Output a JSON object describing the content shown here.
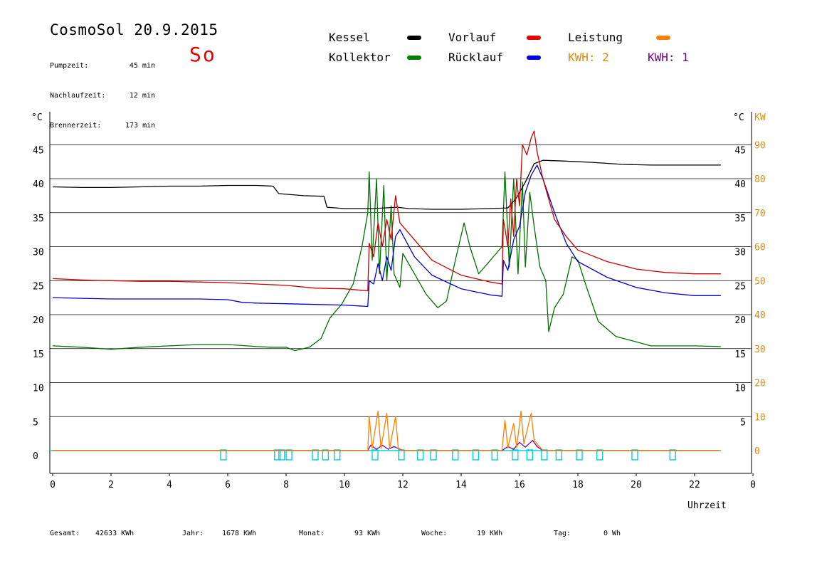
{
  "header": {
    "title": "CosmoSol 20.9.2015",
    "day": "So",
    "stats": [
      {
        "label": "Pumpzeit:",
        "value": "45 min"
      },
      {
        "label": "Nachlaufzeit:",
        "value": "12 min"
      },
      {
        "label": "Brennerzeit:",
        "value": "173 min"
      }
    ]
  },
  "legend": [
    {
      "label": "Kessel",
      "color": "#000000",
      "text_color": "#000000"
    },
    {
      "label": "Vorlauf",
      "color": "#e60000",
      "text_color": "#000000"
    },
    {
      "label": "Leistung",
      "color": "#ff8000",
      "text_color": "#000000"
    },
    {
      "label": "Kollektor",
      "color": "#008000",
      "text_color": "#000000"
    },
    {
      "label": "Rücklauf",
      "color": "#0000dd",
      "text_color": "#000000"
    },
    {
      "label": "KWH: 2",
      "color": "",
      "text_color": "#e68a00"
    },
    {
      "label": "KWH: 1",
      "color": "",
      "text_color": "#800080"
    }
  ],
  "footer": {
    "gesamt_label": "Gesamt:",
    "gesamt_value": "42633 KWh",
    "jahr_label": "Jahr:",
    "jahr_value": "1678 KWh",
    "monat_label": "Monat:",
    "monat_value": "93 KWh",
    "woche_label": "Woche:",
    "woche_value": "19 KWh",
    "tag_label": "Tag:",
    "tag_value": "0 Wh"
  },
  "chart_data": {
    "type": "line",
    "xlabel": "Uhrzeit",
    "ylabel_left": "°C",
    "ylabel_right": "°C",
    "ylabel_right2": "KW",
    "xlim": [
      0,
      24
    ],
    "ylim": [
      -3,
      50
    ],
    "x_ticks": [
      "0",
      "2",
      "4",
      "6",
      "8",
      "10",
      "12",
      "14",
      "16",
      "18",
      "20",
      "22",
      "0"
    ],
    "y_ticks_left": [
      "0",
      "5",
      "10",
      "15",
      "20",
      "25",
      "30",
      "35",
      "40",
      "45"
    ],
    "y_ticks_right": [
      "5",
      "10",
      "15",
      "20",
      "25",
      "30",
      "35",
      "40",
      "45"
    ],
    "y_ticks_kw": [
      "0",
      "10",
      "20",
      "30",
      "40",
      "50",
      "60",
      "70",
      "80",
      "90"
    ],
    "grid": true,
    "colors": {
      "kessel": "#000000",
      "vorlauf": "#cc0000",
      "ruecklauf": "#0000cc",
      "kollektor": "#007000",
      "leistung": "#ff8000",
      "kwh1": "#800080",
      "pump": "#00d0e0",
      "kw_axis": "#e68a00"
    },
    "series": [
      {
        "name": "Kessel",
        "key": "kessel",
        "points": [
          [
            0,
            38.8
          ],
          [
            1,
            38.7
          ],
          [
            2,
            38.7
          ],
          [
            3,
            38.8
          ],
          [
            4,
            38.9
          ],
          [
            5,
            38.9
          ],
          [
            6,
            39.0
          ],
          [
            7,
            39.0
          ],
          [
            7.55,
            38.9
          ],
          [
            7.75,
            37.8
          ],
          [
            8.6,
            37.5
          ],
          [
            9.3,
            37.4
          ],
          [
            9.4,
            35.8
          ],
          [
            10,
            35.6
          ],
          [
            11,
            35.6
          ],
          [
            11.8,
            35.8
          ],
          [
            12.2,
            35.6
          ],
          [
            13,
            35.5
          ],
          [
            14,
            35.5
          ],
          [
            15,
            35.6
          ],
          [
            15.6,
            35.7
          ],
          [
            15.9,
            37.2
          ],
          [
            16.2,
            39.5
          ],
          [
            16.5,
            42.2
          ],
          [
            16.8,
            42.7
          ],
          [
            17.5,
            42.6
          ],
          [
            18.5,
            42.4
          ],
          [
            19.5,
            42.1
          ],
          [
            20.5,
            42.0
          ],
          [
            21.5,
            42.0
          ],
          [
            22.9,
            42.0
          ]
        ]
      },
      {
        "name": "Vorlauf",
        "key": "vorlauf",
        "points": [
          [
            0,
            25.3
          ],
          [
            1,
            25.1
          ],
          [
            2,
            25.0
          ],
          [
            3,
            24.9
          ],
          [
            4,
            24.9
          ],
          [
            5,
            24.8
          ],
          [
            6,
            24.7
          ],
          [
            7,
            24.5
          ],
          [
            8,
            24.3
          ],
          [
            9,
            23.9
          ],
          [
            10,
            23.8
          ],
          [
            10.8,
            23.5
          ],
          [
            10.85,
            30.5
          ],
          [
            11.0,
            28.5
          ],
          [
            11.15,
            33.5
          ],
          [
            11.3,
            30.0
          ],
          [
            11.45,
            34.0
          ],
          [
            11.6,
            31.0
          ],
          [
            11.75,
            37.5
          ],
          [
            11.9,
            33.5
          ],
          [
            12.4,
            31.0
          ],
          [
            13,
            28.0
          ],
          [
            14,
            25.8
          ],
          [
            15,
            24.8
          ],
          [
            15.4,
            24.5
          ],
          [
            15.45,
            34.0
          ],
          [
            15.6,
            30.0
          ],
          [
            15.7,
            37.0
          ],
          [
            15.8,
            31.5
          ],
          [
            15.9,
            40.0
          ],
          [
            16.0,
            36.0
          ],
          [
            16.1,
            45.0
          ],
          [
            16.25,
            43.5
          ],
          [
            16.4,
            46.0
          ],
          [
            16.5,
            47.0
          ],
          [
            16.6,
            44.0
          ],
          [
            16.8,
            40.0
          ],
          [
            17.2,
            34.0
          ],
          [
            17.6,
            31.5
          ],
          [
            18,
            29.5
          ],
          [
            19,
            27.8
          ],
          [
            20,
            26.7
          ],
          [
            21,
            26.2
          ],
          [
            22,
            26.0
          ],
          [
            22.9,
            26.0
          ]
        ]
      },
      {
        "name": "Rücklauf",
        "key": "ruecklauf",
        "points": [
          [
            0,
            22.5
          ],
          [
            1,
            22.4
          ],
          [
            2,
            22.3
          ],
          [
            3,
            22.3
          ],
          [
            4,
            22.3
          ],
          [
            5,
            22.3
          ],
          [
            6,
            22.2
          ],
          [
            6.5,
            21.8
          ],
          [
            7,
            21.7
          ],
          [
            8,
            21.6
          ],
          [
            9,
            21.5
          ],
          [
            10,
            21.4
          ],
          [
            10.8,
            21.2
          ],
          [
            10.85,
            25.0
          ],
          [
            11.0,
            24.5
          ],
          [
            11.15,
            27.5
          ],
          [
            11.3,
            25.0
          ],
          [
            11.45,
            28.5
          ],
          [
            11.6,
            26.5
          ],
          [
            11.75,
            31.5
          ],
          [
            11.9,
            32.5
          ],
          [
            12.4,
            28.5
          ],
          [
            13,
            25.8
          ],
          [
            14,
            23.8
          ],
          [
            15,
            22.9
          ],
          [
            15.4,
            22.7
          ],
          [
            15.45,
            28.0
          ],
          [
            15.6,
            26.5
          ],
          [
            15.8,
            31.0
          ],
          [
            16.0,
            33.0
          ],
          [
            16.2,
            38.0
          ],
          [
            16.4,
            40.5
          ],
          [
            16.6,
            42.0
          ],
          [
            16.8,
            40.0
          ],
          [
            17.2,
            35.0
          ],
          [
            17.6,
            30.5
          ],
          [
            18,
            27.8
          ],
          [
            19,
            25.5
          ],
          [
            20,
            24.0
          ],
          [
            21,
            23.2
          ],
          [
            22,
            22.8
          ],
          [
            22.9,
            22.8
          ]
        ]
      },
      {
        "name": "Kollektor",
        "key": "kollektor",
        "points": [
          [
            0,
            15.4
          ],
          [
            1,
            15.2
          ],
          [
            2,
            14.9
          ],
          [
            3,
            15.2
          ],
          [
            4,
            15.4
          ],
          [
            5,
            15.6
          ],
          [
            6,
            15.6
          ],
          [
            7,
            15.3
          ],
          [
            7.5,
            15.2
          ],
          [
            8,
            15.2
          ],
          [
            8.3,
            14.7
          ],
          [
            8.8,
            15.2
          ],
          [
            9.2,
            16.5
          ],
          [
            9.5,
            19.5
          ],
          [
            9.9,
            21.5
          ],
          [
            10.3,
            24.5
          ],
          [
            10.6,
            30.0
          ],
          [
            10.8,
            35.0
          ],
          [
            10.85,
            41.0
          ],
          [
            10.95,
            28.0
          ],
          [
            11.1,
            40.0
          ],
          [
            11.2,
            26.0
          ],
          [
            11.35,
            39.0
          ],
          [
            11.45,
            25.0
          ],
          [
            11.6,
            36.0
          ],
          [
            11.7,
            26.0
          ],
          [
            11.9,
            24.0
          ],
          [
            12.0,
            29.0
          ],
          [
            12.4,
            26.0
          ],
          [
            12.8,
            23.0
          ],
          [
            13.2,
            21.0
          ],
          [
            13.5,
            22.0
          ],
          [
            13.8,
            28.0
          ],
          [
            14.1,
            33.5
          ],
          [
            14.3,
            30.0
          ],
          [
            14.6,
            26.0
          ],
          [
            14.9,
            27.5
          ],
          [
            15.2,
            29.0
          ],
          [
            15.4,
            30.0
          ],
          [
            15.5,
            41.0
          ],
          [
            15.65,
            27.0
          ],
          [
            15.8,
            40.0
          ],
          [
            15.95,
            26.0
          ],
          [
            16.1,
            39.5
          ],
          [
            16.2,
            27.0
          ],
          [
            16.35,
            38.0
          ],
          [
            16.5,
            33.0
          ],
          [
            16.7,
            27.0
          ],
          [
            16.9,
            25.0
          ],
          [
            17.0,
            17.5
          ],
          [
            17.2,
            21.0
          ],
          [
            17.5,
            23.0
          ],
          [
            17.8,
            28.5
          ],
          [
            18.0,
            28.0
          ],
          [
            18.3,
            24.0
          ],
          [
            18.7,
            19.0
          ],
          [
            19.3,
            16.8
          ],
          [
            20.0,
            16.0
          ],
          [
            20.5,
            15.4
          ],
          [
            21.5,
            15.4
          ],
          [
            22.0,
            15.4
          ],
          [
            22.9,
            15.3
          ]
        ]
      },
      {
        "name": "Leistung",
        "key": "leistung",
        "points": [
          [
            0,
            0
          ],
          [
            10.8,
            0
          ],
          [
            10.85,
            5.0
          ],
          [
            10.95,
            0.3
          ],
          [
            11.15,
            5.8
          ],
          [
            11.25,
            0.3
          ],
          [
            11.45,
            5.5
          ],
          [
            11.55,
            0.3
          ],
          [
            11.75,
            5.0
          ],
          [
            11.85,
            0.2
          ],
          [
            12.0,
            0
          ],
          [
            15.4,
            0
          ],
          [
            15.5,
            4.5
          ],
          [
            15.6,
            0.4
          ],
          [
            15.8,
            4.0
          ],
          [
            15.9,
            0.4
          ],
          [
            16.05,
            5.8
          ],
          [
            16.15,
            1.0
          ],
          [
            16.4,
            5.5
          ],
          [
            16.5,
            1.5
          ],
          [
            16.7,
            0.5
          ],
          [
            16.8,
            0
          ],
          [
            22.9,
            0
          ]
        ]
      },
      {
        "name": "KWH: 1",
        "key": "kwh1",
        "points": [
          [
            0,
            0
          ],
          [
            10.8,
            0
          ],
          [
            10.9,
            0.8
          ],
          [
            11.1,
            0.2
          ],
          [
            11.3,
            0.8
          ],
          [
            11.5,
            0.2
          ],
          [
            11.7,
            0.6
          ],
          [
            12.0,
            0
          ],
          [
            15.4,
            0
          ],
          [
            15.6,
            0.6
          ],
          [
            15.8,
            0.2
          ],
          [
            16.0,
            1.2
          ],
          [
            16.2,
            0.5
          ],
          [
            16.45,
            1.5
          ],
          [
            16.6,
            0.6
          ],
          [
            16.8,
            0
          ],
          [
            22.9,
            0
          ]
        ]
      }
    ],
    "pump_markers": [
      5.85,
      7.7,
      7.85,
      8.1,
      9.0,
      9.35,
      9.75,
      11.05,
      11.95,
      12.6,
      13.05,
      13.8,
      14.5,
      15.15,
      15.85,
      16.35,
      16.85,
      17.35,
      18.05,
      18.75,
      19.95,
      21.25
    ]
  }
}
